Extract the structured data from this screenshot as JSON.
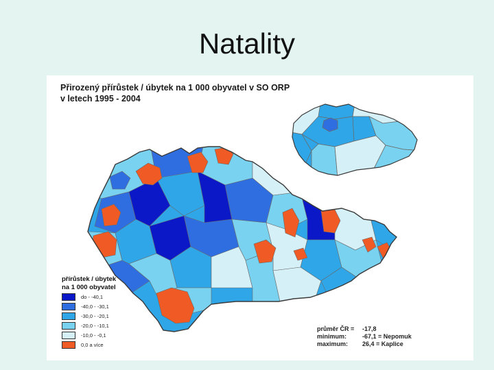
{
  "slide": {
    "title": "Natality"
  },
  "map": {
    "title_line1": "Přirozený přírůstek / úbytek na 1 000 obyvatel v SO ORP",
    "title_line2": "v letech 1995 - 2004",
    "legend": {
      "title_line1": "přírůstek / úbytek",
      "title_line2": "na 1 000 obyvatel",
      "items": [
        {
          "label": "do - -40,1",
          "color": "#0b18c8"
        },
        {
          "label": "-40,0 - -30,1",
          "color": "#2f6ee0"
        },
        {
          "label": "-30,0 - -20,1",
          "color": "#2fa6e8"
        },
        {
          "label": "-20,0 - -10,1",
          "color": "#78d2f0"
        },
        {
          "label": "-10,0 - -0,1",
          "color": "#d6f0f8"
        },
        {
          "label": "0,0 a více",
          "color": "#f05a24"
        }
      ]
    },
    "stats": {
      "cr_label": "průměr ČR =",
      "cr_value": "-17,8",
      "min_label": "minimum:",
      "min_value": "-67,1 = Nepomuk",
      "max_label": "maximum:",
      "max_value": "26,4 = Kaplice"
    },
    "colors": {
      "outline": "#3a3a3a",
      "border": "#6a6a6a"
    }
  }
}
